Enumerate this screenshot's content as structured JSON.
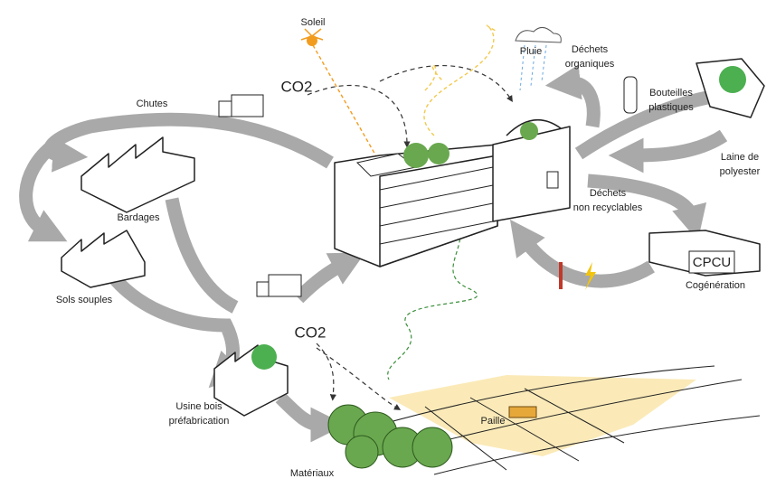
{
  "nodes": [
    {
      "lines": [
        "Soleil"
      ]
    },
    {
      "lines": [
        "CO2"
      ]
    },
    {
      "lines": [
        "Pluie"
      ]
    },
    {
      "lines": [
        "Déchets",
        "organiques"
      ]
    },
    {
      "lines": [
        "Chutes"
      ]
    },
    {
      "lines": [
        "Bouteilles",
        "plastiques"
      ]
    },
    {
      "lines": [
        "Laine de",
        "polyester"
      ]
    },
    {
      "lines": [
        "Bardages"
      ]
    },
    {
      "lines": [
        "Déchets",
        "non recyclables"
      ]
    },
    {
      "lines": [
        "CPCU"
      ]
    },
    {
      "lines": [
        "Cogénération"
      ]
    },
    {
      "lines": [
        "Sols souples"
      ]
    },
    {
      "lines": [
        "CO2"
      ]
    },
    {
      "lines": [
        "Usine bois",
        "préfabrication"
      ]
    },
    {
      "lines": [
        "Paille"
      ]
    },
    {
      "lines": [
        "Matériaux"
      ]
    }
  ]
}
